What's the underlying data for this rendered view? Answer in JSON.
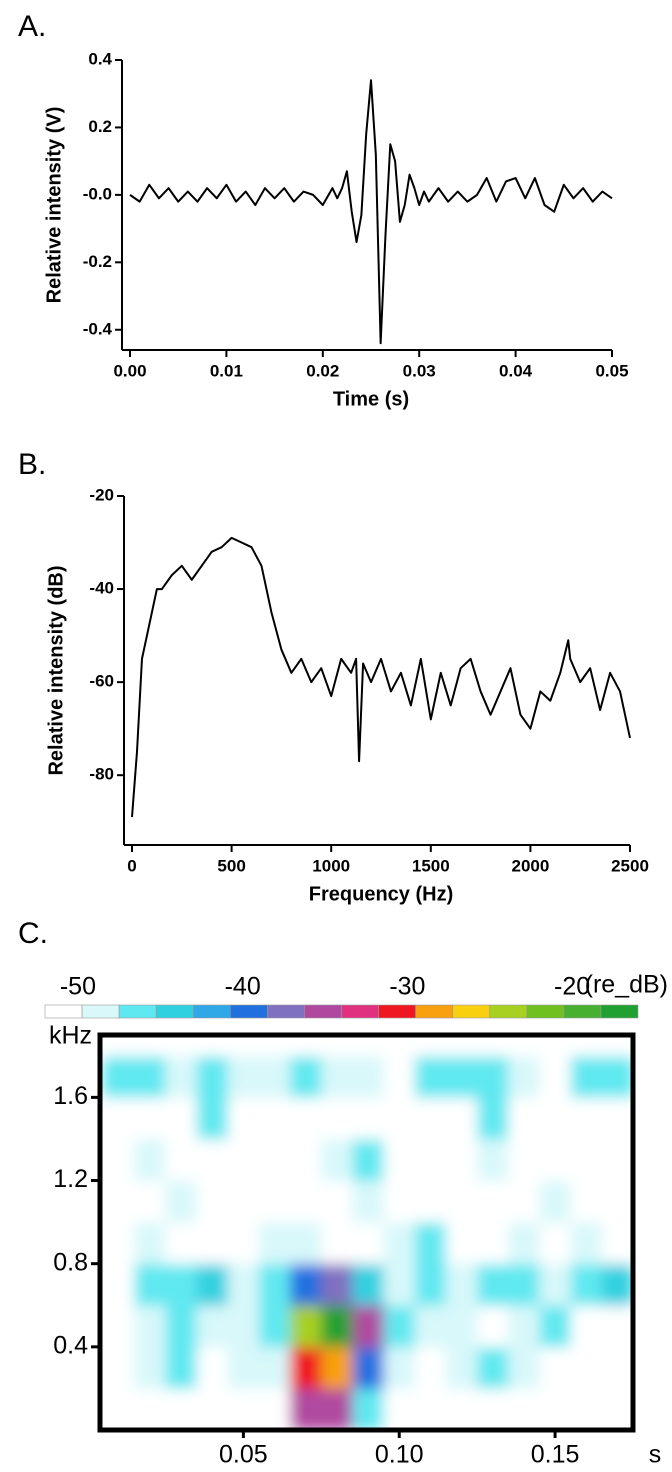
{
  "chart_data": [
    {
      "type": "line",
      "panel_label": "A.",
      "x_label": "Time (s)",
      "y_label": "Relative intensity (V)",
      "color": "#000000",
      "x": [
        0,
        0.001,
        0.002,
        0.003,
        0.004,
        0.005,
        0.006,
        0.007,
        0.008,
        0.009,
        0.01,
        0.011,
        0.012,
        0.013,
        0.014,
        0.015,
        0.016,
        0.017,
        0.018,
        0.019,
        0.02,
        0.021,
        0.0215,
        0.022,
        0.0225,
        0.023,
        0.0235,
        0.024,
        0.0245,
        0.025,
        0.0255,
        0.026,
        0.0265,
        0.027,
        0.0275,
        0.028,
        0.0285,
        0.029,
        0.0295,
        0.03,
        0.0305,
        0.031,
        0.032,
        0.033,
        0.034,
        0.035,
        0.036,
        0.037,
        0.038,
        0.039,
        0.04,
        0.041,
        0.042,
        0.043,
        0.044,
        0.045,
        0.046,
        0.047,
        0.048,
        0.049,
        0.05
      ],
      "values": [
        0,
        -0.02,
        0.03,
        -0.01,
        0.02,
        -0.02,
        0.01,
        -0.02,
        0.02,
        -0.01,
        0.03,
        -0.02,
        0.01,
        -0.03,
        0.02,
        -0.01,
        0.02,
        -0.02,
        0.01,
        0,
        -0.03,
        0.02,
        -0.01,
        0.02,
        0.07,
        -0.05,
        -0.14,
        -0.06,
        0.18,
        0.34,
        0.12,
        -0.44,
        -0.12,
        0.15,
        0.1,
        -0.08,
        -0.03,
        0.06,
        0.02,
        -0.03,
        0.01,
        -0.02,
        0.02,
        -0.02,
        0.01,
        -0.02,
        0,
        0.05,
        -0.02,
        0.04,
        0.05,
        -0.01,
        0.05,
        -0.03,
        -0.05,
        0.03,
        -0.01,
        0.02,
        -0.02,
        0.01,
        -0.01
      ],
      "xlim": [
        0,
        0.05
      ],
      "ylim": [
        -0.46,
        0.4
      ],
      "xticks": [
        {
          "value": 0,
          "label": "0.00"
        },
        {
          "value": 0.01,
          "label": "0.01"
        },
        {
          "value": 0.02,
          "label": "0.02"
        },
        {
          "value": 0.03,
          "label": "0.03"
        },
        {
          "value": 0.04,
          "label": "0.04"
        },
        {
          "value": 0.05,
          "label": "0.05"
        }
      ],
      "yticks": [
        0.4,
        0.2,
        {
          "value": 0,
          "label": "-0.0"
        },
        -0.2,
        -0.4
      ]
    },
    {
      "type": "line",
      "panel_label": "B.",
      "x_label": "Frequency (Hz)",
      "y_label": "Relative intensity (dB)",
      "color": "#000000",
      "x": [
        0,
        25,
        50,
        100,
        125,
        150,
        200,
        250,
        300,
        350,
        400,
        450,
        500,
        550,
        600,
        650,
        700,
        750,
        800,
        850,
        900,
        950,
        1000,
        1050,
        1100,
        1125,
        1140,
        1160,
        1200,
        1250,
        1300,
        1350,
        1400,
        1450,
        1500,
        1550,
        1600,
        1650,
        1700,
        1750,
        1800,
        1850,
        1900,
        1950,
        2000,
        2050,
        2100,
        2150,
        2190,
        2200,
        2250,
        2300,
        2350,
        2400,
        2450,
        2500
      ],
      "values": [
        -89,
        -75,
        -55,
        -45,
        -40,
        -40,
        -37,
        -35,
        -38,
        -35,
        -32,
        -31,
        -29,
        -30,
        -31,
        -35,
        -45,
        -53,
        -58,
        -55,
        -60,
        -57,
        -63,
        -55,
        -58,
        -55,
        -77,
        -56,
        -60,
        -55,
        -62,
        -58,
        -65,
        -55,
        -68,
        -58,
        -65,
        -57,
        -55,
        -62,
        -67,
        -62,
        -57,
        -67,
        -70,
        -62,
        -64,
        -58,
        -51,
        -55,
        -60,
        -57,
        -66,
        -58,
        -62,
        -72
      ],
      "xlim": [
        0,
        2500
      ],
      "ylim": [
        -95,
        -20
      ],
      "xticks": [
        0,
        500,
        1000,
        1500,
        2000,
        2500
      ],
      "yticks": [
        -20,
        -40,
        -60,
        -80
      ]
    },
    {
      "type": "heatmap",
      "panel_label": "C.",
      "x_label": "s",
      "y_label": "kHz",
      "x": [
        0.01,
        0.02,
        0.03,
        0.04,
        0.05,
        0.06,
        0.07,
        0.08,
        0.09,
        0.1,
        0.11,
        0.12,
        0.13,
        0.14,
        0.15,
        0.16,
        0.17
      ],
      "y": [
        0.1,
        0.3,
        0.5,
        0.7,
        0.9,
        1.1,
        1.3,
        1.5,
        1.7,
        1.9
      ],
      "z": [
        [
          -52,
          -52,
          -52,
          -52,
          -52,
          -50,
          -36,
          -35,
          -46,
          -50,
          -52,
          -52,
          -52,
          -52,
          -52,
          -52,
          -52
        ],
        [
          -52,
          -49,
          -47,
          -50,
          -49,
          -49,
          -30,
          -29,
          -40,
          -48,
          -52,
          -49,
          -47,
          -49,
          -52,
          -52,
          -52
        ],
        [
          -52,
          -48,
          -46,
          -49,
          -48,
          -47,
          -24,
          -18,
          -36,
          -47,
          -49,
          -48,
          -50,
          -49,
          -47,
          -50,
          -52
        ],
        [
          -50,
          -46,
          -47,
          -45,
          -49,
          -47,
          -40,
          -38,
          -45,
          -48,
          -47,
          -49,
          -47,
          -46,
          -48,
          -47,
          -44
        ],
        [
          -52,
          -49,
          -52,
          -50,
          -52,
          -49,
          -48,
          -50,
          -52,
          -49,
          -47,
          -50,
          -52,
          -49,
          -52,
          -49,
          -52
        ],
        [
          -50,
          -52,
          -49,
          -52,
          -52,
          -50,
          -52,
          -52,
          -49,
          -52,
          -52,
          -50,
          -52,
          -52,
          -49,
          -50,
          -52
        ],
        [
          -52,
          -49,
          -52,
          -52,
          -50,
          -52,
          -52,
          -49,
          -47,
          -52,
          -50,
          -52,
          -49,
          -52,
          -52,
          -52,
          -50
        ],
        [
          -52,
          -52,
          -50,
          -47,
          -52,
          -52,
          -50,
          -52,
          -52,
          -50,
          -52,
          -52,
          -47,
          -52,
          -50,
          -52,
          -52
        ],
        [
          -46,
          -47,
          -48,
          -46,
          -48,
          -49,
          -47,
          -48,
          -49,
          -50,
          -47,
          -46,
          -47,
          -49,
          -50,
          -46,
          -47
        ],
        [
          -52,
          -52,
          -52,
          -52,
          -52,
          -52,
          -52,
          -52,
          -52,
          -52,
          -52,
          -52,
          -52,
          -52,
          -52,
          -52,
          -52
        ]
      ],
      "xlim": [
        0.004,
        0.175
      ],
      "ylim": [
        0,
        1.9
      ],
      "xticks": [
        0.05,
        {
          "value": 0.1,
          "label": "0.10"
        },
        0.15
      ],
      "yticks": [
        0.4,
        0.8,
        1.2,
        1.6
      ],
      "colorbar": {
        "label": "(re_dB)",
        "clim": [
          -52,
          -16
        ],
        "ticks": [
          -50,
          -40,
          -30,
          -20
        ],
        "colors": [
          "#ffffff",
          "#d8f8fa",
          "#60e8f0",
          "#30d0e0",
          "#30a8e8",
          "#2070e0",
          "#8070c0",
          "#b048a0",
          "#e03080",
          "#f01820",
          "#f8a010",
          "#f8d010",
          "#a8d020",
          "#70c020",
          "#48b030",
          "#20a030"
        ]
      }
    }
  ]
}
